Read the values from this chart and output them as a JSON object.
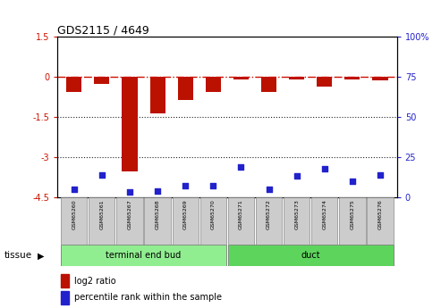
{
  "title": "GDS2115 / 4649",
  "samples": [
    "GSM65260",
    "GSM65261",
    "GSM65267",
    "GSM65268",
    "GSM65269",
    "GSM65270",
    "GSM65271",
    "GSM65272",
    "GSM65273",
    "GSM65274",
    "GSM65275",
    "GSM65276"
  ],
  "log2_ratio": [
    -0.55,
    -0.25,
    -3.55,
    -1.35,
    -0.85,
    -0.55,
    -0.08,
    -0.55,
    -0.08,
    -0.35,
    -0.08,
    -0.12
  ],
  "percentile_rank": [
    5,
    14,
    3,
    4,
    7,
    7,
    19,
    5,
    13,
    18,
    10,
    14
  ],
  "ylim_left": [
    -4.5,
    1.5
  ],
  "ylim_right": [
    0,
    100
  ],
  "yticks_left": [
    1.5,
    0,
    -1.5,
    -3,
    -4.5
  ],
  "ytick_labels_left": [
    "1.5",
    "0",
    "-1.5",
    "-3",
    "-4.5"
  ],
  "yticks_right": [
    0,
    25,
    50,
    75,
    100
  ],
  "ytick_labels_right": [
    "0",
    "25",
    "50",
    "75",
    "100%"
  ],
  "groups": [
    {
      "name": "terminal end bud",
      "start": 0,
      "end": 6,
      "color": "#90EE90"
    },
    {
      "name": "duct",
      "start": 6,
      "end": 12,
      "color": "#5DD55D"
    }
  ],
  "bar_color": "#BB1100",
  "dot_color": "#2222CC",
  "hline_color": "#CC1100",
  "dotted_line_color": "#222222",
  "tissue_label": "tissue",
  "legend_log2": "log2 ratio",
  "legend_pct": "percentile rank within the sample",
  "bar_width": 0.55
}
